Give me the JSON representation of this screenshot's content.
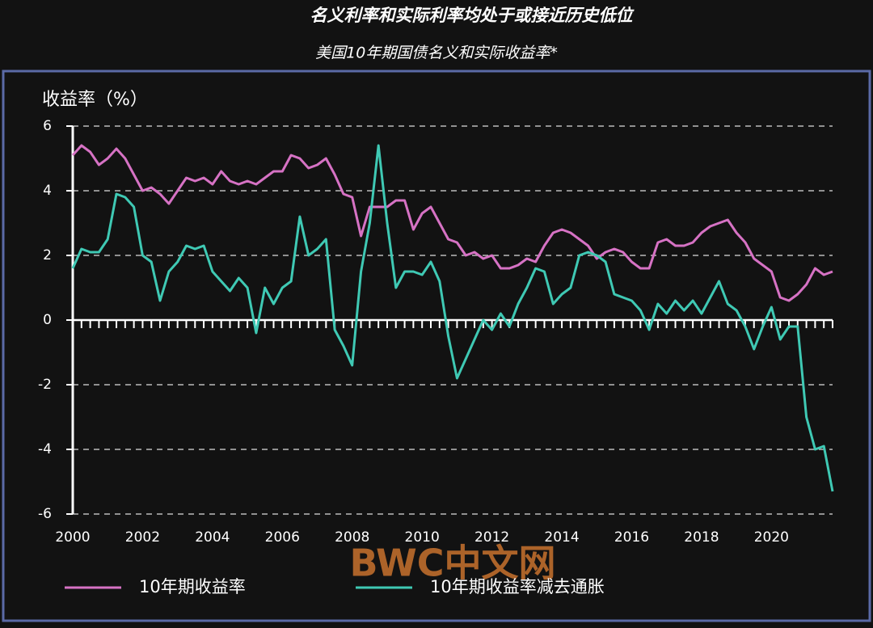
{
  "chart_data": {
    "type": "line",
    "title": "名义利率和实际利率均处于或接近历史低位",
    "subtitle": "美国10年期国债名义和实际收益率*",
    "y_label": "收益率（%）",
    "watermark": "BWC中文网",
    "x": [
      2000,
      2000.25,
      2000.5,
      2000.75,
      2001,
      2001.25,
      2001.5,
      2001.75,
      2002,
      2002.25,
      2002.5,
      2002.75,
      2003,
      2003.25,
      2003.5,
      2003.75,
      2004,
      2004.25,
      2004.5,
      2004.75,
      2005,
      2005.25,
      2005.5,
      2005.75,
      2006,
      2006.25,
      2006.5,
      2006.75,
      2007,
      2007.25,
      2007.5,
      2007.75,
      2008,
      2008.25,
      2008.5,
      2008.75,
      2009,
      2009.25,
      2009.5,
      2009.75,
      2010,
      2010.25,
      2010.5,
      2010.75,
      2011,
      2011.25,
      2011.5,
      2011.75,
      2012,
      2012.25,
      2012.5,
      2012.75,
      2013,
      2013.25,
      2013.5,
      2013.75,
      2014,
      2014.25,
      2014.5,
      2014.75,
      2015,
      2015.25,
      2015.5,
      2015.75,
      2016,
      2016.25,
      2016.5,
      2016.75,
      2017,
      2017.25,
      2017.5,
      2017.75,
      2018,
      2018.25,
      2018.5,
      2018.75,
      2019,
      2019.25,
      2019.5,
      2019.75,
      2020,
      2020.25,
      2020.5,
      2020.75,
      2021,
      2021.25,
      2021.5,
      2021.75
    ],
    "series": [
      {
        "name": "10年期收益率",
        "color": "#d672c4",
        "values": [
          5.1,
          5.4,
          5.2,
          4.8,
          5.0,
          5.3,
          5.0,
          4.5,
          4.0,
          4.1,
          3.9,
          3.6,
          4.0,
          4.4,
          4.3,
          4.4,
          4.2,
          4.6,
          4.3,
          4.2,
          4.3,
          4.2,
          4.4,
          4.6,
          4.6,
          5.1,
          5.0,
          4.7,
          4.8,
          5.0,
          4.5,
          3.9,
          3.8,
          2.6,
          3.5,
          3.5,
          3.5,
          3.7,
          3.7,
          2.8,
          3.3,
          3.5,
          3.0,
          2.5,
          2.4,
          2.0,
          2.1,
          1.9,
          2.0,
          1.6,
          1.6,
          1.7,
          1.9,
          1.8,
          2.3,
          2.7,
          2.8,
          2.7,
          2.5,
          2.3,
          1.9,
          2.1,
          2.2,
          2.1,
          1.8,
          1.6,
          1.6,
          2.4,
          2.5,
          2.3,
          2.3,
          2.4,
          2.7,
          2.9,
          3.0,
          3.1,
          2.7,
          2.4,
          1.9,
          1.7,
          1.5,
          0.7,
          0.6,
          0.8,
          1.1,
          1.6,
          1.4,
          1.5
        ]
      },
      {
        "name": "10年期收益率减去通胀",
        "color": "#3fc9b4",
        "values": [
          1.6,
          2.2,
          2.1,
          2.1,
          2.5,
          3.9,
          3.8,
          3.5,
          2.0,
          1.8,
          0.6,
          1.5,
          1.8,
          2.3,
          2.2,
          2.3,
          1.5,
          1.2,
          0.9,
          1.3,
          1.0,
          -0.4,
          1.0,
          0.5,
          1.0,
          1.2,
          3.2,
          2.0,
          2.2,
          2.5,
          -0.3,
          -0.8,
          -1.4,
          1.5,
          3.0,
          5.4,
          3.0,
          1.0,
          1.5,
          1.5,
          1.4,
          1.8,
          1.2,
          -0.5,
          -1.8,
          -1.2,
          -0.6,
          0.0,
          -0.3,
          0.2,
          -0.2,
          0.5,
          1.0,
          1.6,
          1.5,
          0.5,
          0.8,
          1.0,
          2.0,
          2.1,
          2.0,
          1.8,
          0.8,
          0.7,
          0.6,
          0.3,
          -0.3,
          0.5,
          0.2,
          0.6,
          0.3,
          0.6,
          0.2,
          0.7,
          1.2,
          0.5,
          0.3,
          -0.2,
          -0.9,
          -0.2,
          0.4,
          -0.6,
          -0.2,
          -0.2,
          -3.0,
          -4.0,
          -3.9,
          -5.3
        ]
      }
    ],
    "xlim": [
      2000,
      2021.75
    ],
    "xticks": [
      2000,
      2002,
      2004,
      2006,
      2008,
      2010,
      2012,
      2014,
      2016,
      2018,
      2020
    ],
    "ylim": [
      -6,
      6
    ],
    "yticks": [
      -6,
      -4,
      -2,
      0,
      2,
      4,
      6
    ],
    "grid": true
  }
}
